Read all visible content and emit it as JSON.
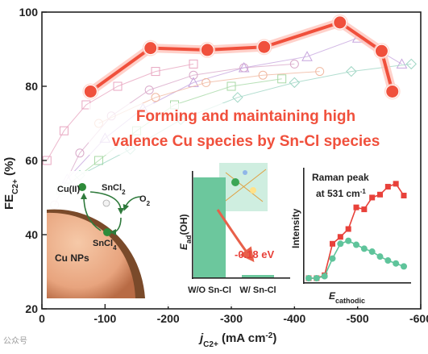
{
  "headline": {
    "line1": "Forming and maintaining high",
    "line2": "valence Cu species by Sn-Cl species",
    "color": "#f0503c"
  },
  "watermark": "公众号",
  "chart_data": [
    {
      "type": "line",
      "title": "",
      "xlabel_main": "j",
      "xlabel_sub": "C2+",
      "xlabel_unit": " (mA cm",
      "xlabel_sup": "-2",
      "xlabel_close": ")",
      "ylabel_main": "FE",
      "ylabel_sub": "C2+",
      "ylabel_unit": " (%)",
      "xlim": [
        0,
        -600
      ],
      "ylim": [
        20,
        100
      ],
      "x_ticks": [
        0,
        -100,
        -200,
        -300,
        -400,
        -500,
        -600
      ],
      "x_tick_labels": [
        "0",
        "-100",
        "-200",
        "-300",
        "-400",
        "-500",
        "-600"
      ],
      "y_ticks": [
        20,
        40,
        60,
        80,
        100
      ],
      "y_tick_labels": [
        "20",
        "40",
        "60",
        "80",
        "100"
      ],
      "highlight_color": "#f0503c",
      "series": [
        {
          "x": [
            -77,
            -172,
            -262,
            -352,
            -472,
            -538,
            -555
          ],
          "y": [
            78.6,
            90.3,
            89.8,
            90.6,
            97.2,
            89.5,
            78.6
          ]
        }
      ],
      "background_series": [
        {
          "marker": "square",
          "color": "#e8a6c0",
          "x": [
            -8,
            -35,
            -70,
            -120,
            -180,
            -240
          ],
          "y": [
            60,
            68,
            75,
            80,
            84,
            86
          ]
        },
        {
          "marker": "circle",
          "color": "#d9a9c9",
          "x": [
            -20,
            -60,
            -110,
            -170,
            -240,
            -320,
            -400
          ],
          "y": [
            48,
            62,
            72,
            79,
            83,
            85,
            86
          ]
        },
        {
          "marker": "triangle",
          "color": "#c7a6de",
          "x": [
            -40,
            -100,
            -160,
            -240,
            -320,
            -420,
            -500,
            -570
          ],
          "y": [
            55,
            66,
            74,
            81,
            85,
            88,
            93,
            86
          ]
        },
        {
          "marker": "square",
          "color": "#a8d9a6",
          "x": [
            -30,
            -90,
            -150,
            -210,
            -300,
            -380
          ],
          "y": [
            52,
            60,
            68,
            75,
            80,
            82
          ]
        },
        {
          "marker": "diamond",
          "color": "#9fd6c4",
          "x": [
            -60,
            -140,
            -220,
            -310,
            -400,
            -490,
            -585
          ],
          "y": [
            56,
            63,
            71,
            77,
            81,
            84,
            86
          ]
        },
        {
          "marker": "circle",
          "color": "#f0b8a0",
          "x": [
            -90,
            -180,
            -260,
            -350,
            -440
          ],
          "y": [
            70,
            77,
            81,
            83,
            84
          ]
        }
      ]
    },
    {
      "type": "bar",
      "categories": [
        "W/O Sn-Cl",
        "W/ Sn-Cl"
      ],
      "values": [
        1.0,
        0.0
      ],
      "ylabel_main": "E",
      "ylabel_sub": "ad",
      "ylabel_unit": "(OH)",
      "annotation": "-0.18 eV",
      "bar_color": "#6cc79d",
      "arrow_color": "#e8604a"
    },
    {
      "type": "line",
      "title_line1": "Raman peak",
      "title_line2_pre": "at 531 cm",
      "title_line2_sup": "-1",
      "ylabel": "Intensity",
      "xlabel_main": "E",
      "xlabel_sub": "cathodic",
      "series": [
        {
          "color": "#e8413a",
          "marker": "square",
          "x": [
            0,
            1,
            2,
            3,
            4,
            5,
            6,
            7,
            8,
            9,
            10,
            11,
            12
          ],
          "y": [
            0.0,
            0.0,
            0.03,
            0.35,
            0.42,
            0.5,
            0.72,
            0.7,
            0.82,
            0.85,
            0.93,
            0.96,
            0.84
          ]
        },
        {
          "color": "#5fc49b",
          "marker": "circle",
          "x": [
            0,
            1,
            2,
            3,
            4,
            5,
            6,
            7,
            8,
            9,
            10,
            11,
            12
          ],
          "y": [
            0.0,
            0.0,
            0.02,
            0.2,
            0.35,
            0.38,
            0.34,
            0.3,
            0.27,
            0.22,
            0.18,
            0.15,
            0.12
          ]
        }
      ]
    }
  ],
  "scheme": {
    "cu2_label": "Cu(II)",
    "sncl2_label_main": "SnCl",
    "sncl2_label_sub": "2",
    "o2_label_main": "O",
    "o2_label_sub": "2",
    "sncl4_label_main": "SnCl",
    "sncl4_label_sub": "4",
    "cu_nps_label": "Cu NPs"
  }
}
